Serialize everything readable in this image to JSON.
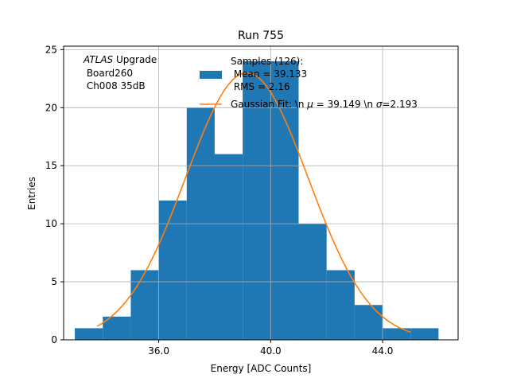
{
  "colors": {
    "histogram": "#1f77b4",
    "fit": "#ff7f0e",
    "grid": "#b0b0b0",
    "axes": "#000000",
    "background": "#ffffff"
  },
  "chart_data": {
    "type": "bar",
    "subtype": "histogram",
    "title": "Run 755",
    "xlabel": "Energy [ADC Counts]",
    "ylabel": "Entries",
    "xlim": [
      32.6,
      46.7
    ],
    "ylim": [
      0,
      25.3
    ],
    "grid": true,
    "x_ticks": [
      36,
      40,
      44
    ],
    "x_tick_labels": [
      "36.0",
      "40.0",
      "44.0"
    ],
    "y_ticks": [
      0,
      5,
      10,
      15,
      20,
      25
    ],
    "y_tick_labels": [
      "0",
      "5",
      "10",
      "15",
      "20",
      "25"
    ],
    "bin_edges": [
      33,
      34,
      35,
      36,
      37,
      38,
      39,
      40,
      41,
      42,
      43,
      44,
      45,
      46
    ],
    "counts": [
      1,
      2,
      6,
      12,
      20,
      16,
      24,
      24,
      10,
      6,
      3,
      1,
      1
    ],
    "fit": {
      "model": "gaussian",
      "mu": 39.149,
      "sigma": 2.193,
      "amplitude": 23.0,
      "x_range": [
        33.8,
        45.0
      ]
    },
    "annotation": {
      "experiment": "ATLAS",
      "experiment_suffix": " Upgrade",
      "line2": " Board260",
      "line3": " Ch008 35dB"
    },
    "legend": {
      "position": "top-right",
      "entries": [
        {
          "series": "histogram",
          "lines": [
            "Samples (126):",
            " Mean = 39.133",
            " RMS = 2.16"
          ]
        },
        {
          "series": "fit",
          "prefix": "Gaussian Fit: \\n ",
          "mu_symbol": "μ",
          "mu_text": " = 39.149 \\n ",
          "sigma_symbol": "σ",
          "sigma_text": "=2.193"
        }
      ]
    }
  }
}
